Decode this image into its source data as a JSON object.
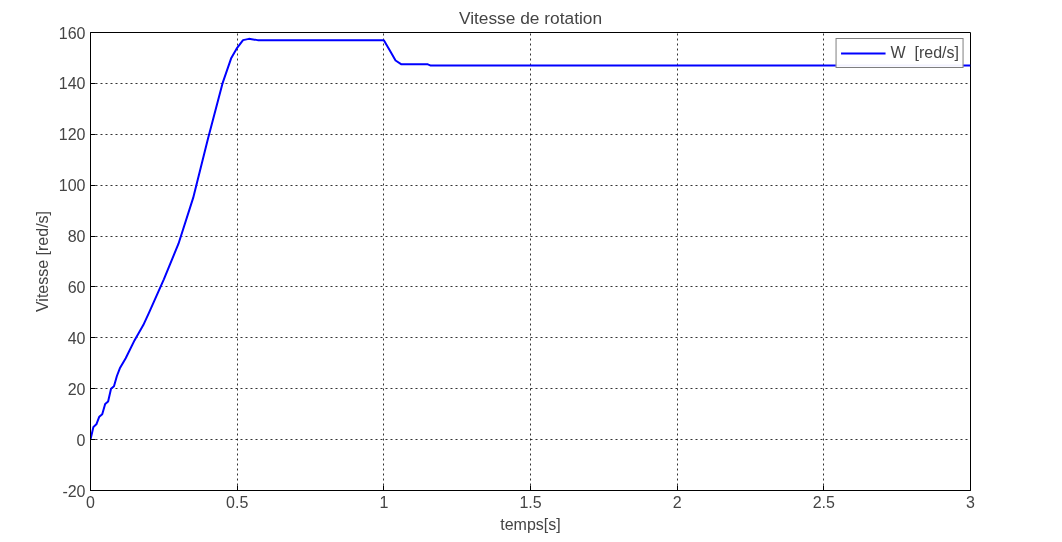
{
  "chart_data": {
    "type": "line",
    "title": "Vitesse de rotation",
    "xlabel": "temps[s]",
    "ylabel": "Vitesse [red/s]",
    "xlim": [
      0,
      3
    ],
    "ylim": [
      -20,
      160
    ],
    "xticks": [
      0,
      0.5,
      1,
      1.5,
      2,
      2.5,
      3
    ],
    "yticks": [
      -20,
      0,
      20,
      40,
      60,
      80,
      100,
      120,
      140,
      160
    ],
    "grid": true,
    "legend": "top right",
    "line_style": "solid",
    "marker": "none",
    "series": [
      {
        "name": "W  [red/s]",
        "color": "#0000ff",
        "x": [
          0,
          0.01,
          0.02,
          0.03,
          0.04,
          0.05,
          0.06,
          0.07,
          0.08,
          0.09,
          0.1,
          0.12,
          0.15,
          0.18,
          0.2,
          0.25,
          0.3,
          0.35,
          0.4,
          0.45,
          0.48,
          0.5,
          0.52,
          0.54,
          0.57,
          0.6,
          1.0,
          1.02,
          1.04,
          1.06,
          1.15,
          1.16,
          3
        ],
        "values": [
          0,
          5,
          6,
          9,
          10,
          14,
          15,
          20,
          21,
          25,
          28,
          32,
          39,
          45,
          50,
          63,
          77,
          95,
          118,
          140,
          150,
          154,
          157,
          157.5,
          157,
          157,
          157,
          153,
          149,
          147.5,
          147.5,
          147,
          147
        ]
      }
    ]
  }
}
